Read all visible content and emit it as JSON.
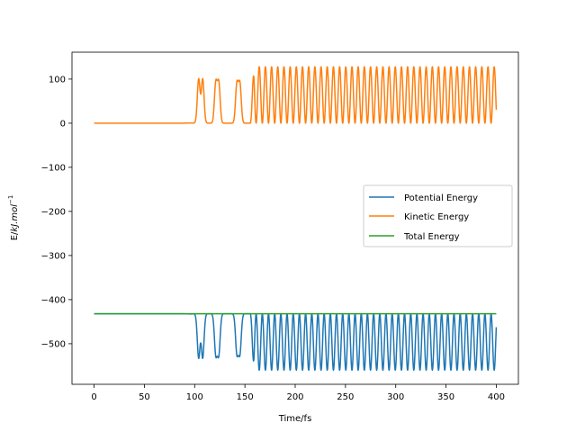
{
  "chart_data": {
    "type": "line",
    "title": "",
    "xlabel": "Time/fs",
    "ylabel_parts": {
      "base": "E/",
      "italic": "kJ.mol",
      "sup": "−1"
    },
    "xlim": [
      -22,
      422
    ],
    "ylim": [
      -592,
      161
    ],
    "xticks": [
      0,
      50,
      100,
      150,
      200,
      250,
      300,
      350,
      400
    ],
    "xtick_labels": [
      "0",
      "50",
      "100",
      "150",
      "200",
      "250",
      "300",
      "350",
      "400"
    ],
    "yticks": [
      100,
      0,
      -100,
      -200,
      -300,
      -400,
      -500
    ],
    "ytick_labels": [
      "100",
      "0",
      "−100",
      "−200",
      "−300",
      "−400",
      "−500"
    ],
    "grid": false,
    "legend_position": "center-right",
    "total_energy": -432,
    "kinetic_max": 128,
    "potential_min": -560,
    "oscillation_onset_fs": 100,
    "steady_period_fs": 6.15,
    "burst_peaks_fs": [
      104,
      108,
      121,
      124,
      142,
      145
    ],
    "series": [
      {
        "name": "Potential Energy",
        "color": "#1f77b4"
      },
      {
        "name": "Kinetic Energy",
        "color": "#ff7f0e"
      },
      {
        "name": "Total Energy",
        "color": "#2ca02c"
      }
    ]
  }
}
